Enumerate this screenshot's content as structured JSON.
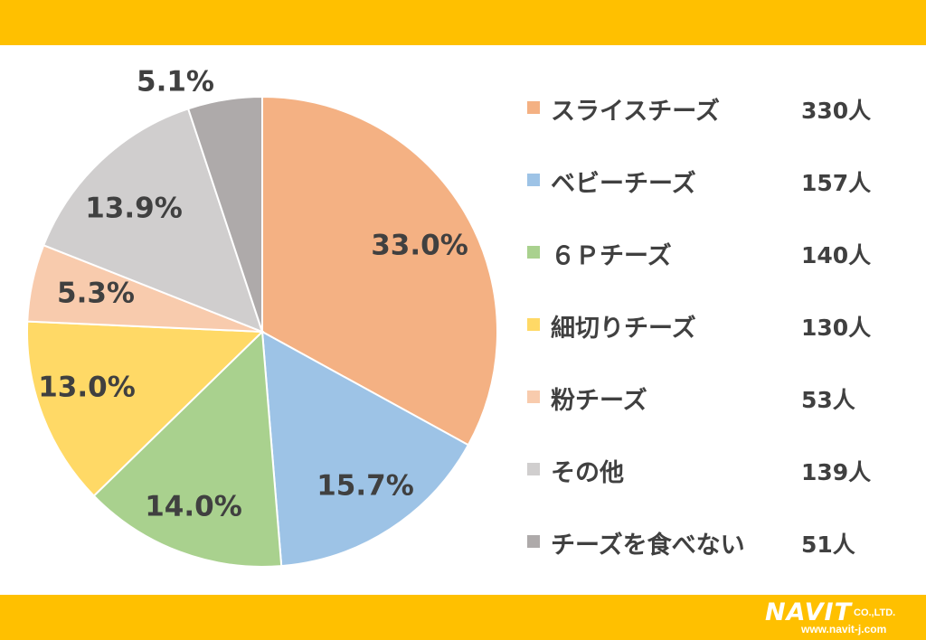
{
  "theme": {
    "band_color": "#FFC000",
    "text_color": "#404040"
  },
  "chart_data": {
    "type": "pie",
    "start_angle_deg": 0,
    "direction": "clockwise",
    "slices": [
      {
        "label": "スライスチーズ",
        "count": "330人",
        "percent": 33.0,
        "percent_label": "33.0%",
        "color": "#F4B183"
      },
      {
        "label": "ベビーチーズ",
        "count": "157人",
        "percent": 15.7,
        "percent_label": "15.7%",
        "color": "#9DC3E6"
      },
      {
        "label": "６Ｐチーズ",
        "count": "140人",
        "percent": 14.0,
        "percent_label": "14.0%",
        "color": "#A9D18E"
      },
      {
        "label": "細切りチーズ",
        "count": "130人",
        "percent": 13.0,
        "percent_label": "13.0%",
        "color": "#FFD966"
      },
      {
        "label": "粉チーズ",
        "count": "53人",
        "percent": 5.3,
        "percent_label": "5.3%",
        "color": "#F8CBAD"
      },
      {
        "label": "その他",
        "count": "139人",
        "percent": 13.9,
        "percent_label": "13.9%",
        "color": "#D0CECE"
      },
      {
        "label": "チーズを食べない",
        "count": "51人",
        "percent": 5.1,
        "percent_label": "5.1%",
        "color": "#AEAAAA"
      }
    ],
    "legend_position": "right"
  },
  "logo": {
    "name": "NAVIT",
    "suffix": "CO.,LTD.",
    "url": "www.navit-j.com"
  }
}
